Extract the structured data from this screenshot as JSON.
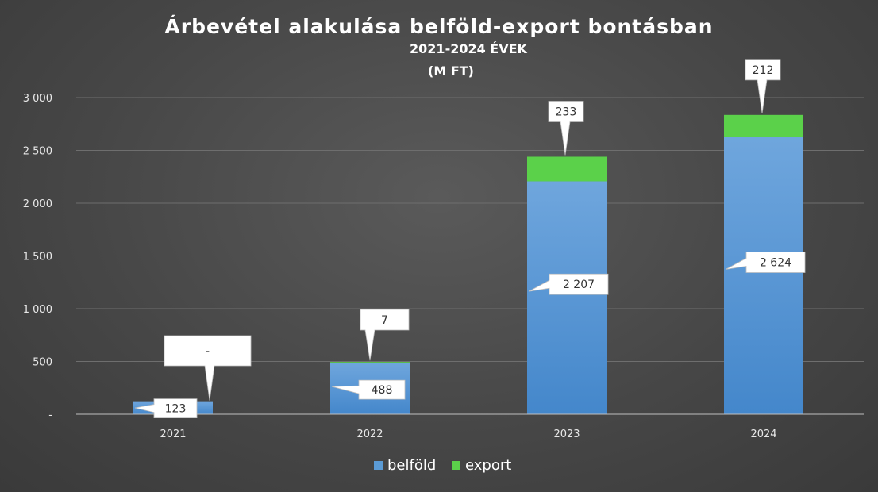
{
  "chart_data": {
    "type": "bar",
    "stacked": true,
    "title": "Árbevétel alakulása belföld-export bontásban",
    "subtitle": "2021-2024 ÉVEK",
    "unit_label": "(M FT)",
    "categories": [
      "2021",
      "2022",
      "2023",
      "2024"
    ],
    "series": [
      {
        "name": "belföld",
        "values": [
          123,
          488,
          2207,
          2624
        ],
        "labels": [
          "123",
          "488",
          "2 207",
          "2 624"
        ],
        "color": "#5b9bd5"
      },
      {
        "name": "export",
        "values": [
          0,
          7,
          233,
          212
        ],
        "labels": [
          "-",
          "7",
          "233",
          "212"
        ],
        "color": "#5bd14a"
      }
    ],
    "ylim": [
      0,
      3000
    ],
    "yticks": [
      0,
      500,
      1000,
      1500,
      2000,
      2500,
      3000
    ],
    "ytick_labels": [
      "-",
      "500",
      "1 000",
      "1 500",
      "2 000",
      "2 500",
      "3 000"
    ],
    "grid": true,
    "legend_position": "bottom"
  }
}
